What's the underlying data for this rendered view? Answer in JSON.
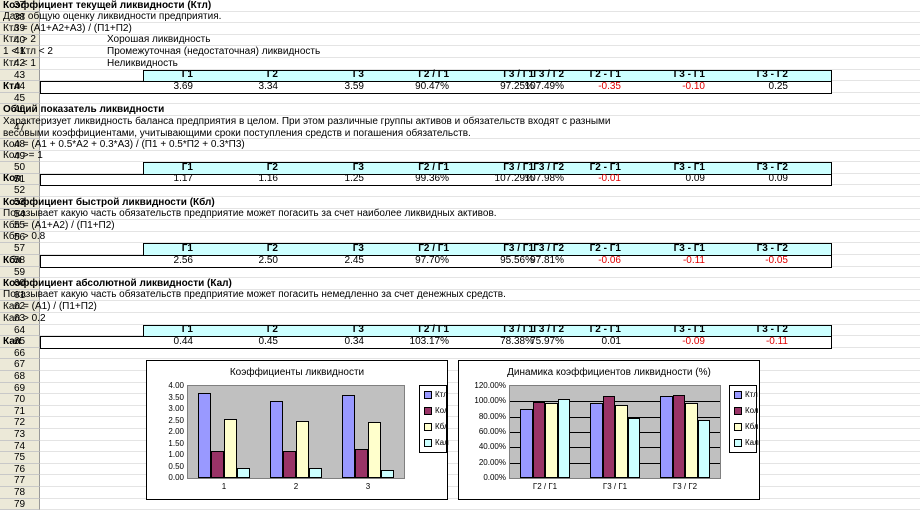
{
  "rows": [
    "37",
    "38",
    "39",
    "40",
    "41",
    "42",
    "43",
    "44",
    "45",
    "46",
    "47",
    "48",
    "49",
    "50",
    "51",
    "52",
    "53",
    "54",
    "55",
    "56",
    "57",
    "58",
    "59",
    "60",
    "61",
    "62",
    "63",
    "64",
    "65",
    "66",
    "67",
    "68",
    "69",
    "70",
    "71",
    "72",
    "73",
    "74",
    "75",
    "76",
    "77",
    "78",
    "79"
  ],
  "colors": {
    "ktl": "#9999ff",
    "kol": "#993366",
    "kbl": "#ffffcc",
    "kal": "#ccffff",
    "header_band": "#ccffff",
    "negative": "#e00000",
    "plot_bg": "#c0c0c0"
  },
  "column_headers": [
    "Г1",
    "Г2",
    "Г3",
    "Г2 / Г1",
    "Г3 / Г1",
    "Г3 / Г2",
    "Г2 - Г1",
    "Г3 - Г1",
    "Г3 - Г2"
  ],
  "sections": [
    {
      "title": "Коэффициент текущей ликвидности (Ктл)",
      "description": "Дает общую оценку ликвидности предприятия.",
      "formula": "Ктл = (А1+А2+А3) / (П1+П2)",
      "criteria": [
        {
          "cond": "Ктл > 2",
          "meaning": "Хорошая ликвидность"
        },
        {
          "cond": "1 < Ктл < 2",
          "meaning": "Промежуточная (недостаточная) ликвидность"
        },
        {
          "cond": "Ктл < 1",
          "meaning": "Неликвидность"
        }
      ],
      "label": "Ктл",
      "values": [
        "3.69",
        "3.34",
        "3.59",
        "90.47%",
        "97.25%",
        "107.49%",
        "-0.35",
        "-0.10",
        "0.25"
      ],
      "negative": [
        false,
        false,
        false,
        false,
        false,
        false,
        true,
        true,
        false
      ]
    },
    {
      "title": "Общий показатель ликвидности",
      "description1": "Характеризует ликвидность баланса предприятия в целом. При этом различные группы активов и обязательств входят с разными",
      "description2": "весовыми коэффициентами, учитывающими сроки поступления средств и погашения обязательств.",
      "formula": "Кол = (А1 + 0.5*А2 + 0.3*А3) / (П1 + 0.5*П2 + 0.3*П3)",
      "criteria_text": "Кол >= 1",
      "label": "Кол",
      "values": [
        "1.17",
        "1.16",
        "1.25",
        "99.36%",
        "107.29%",
        "107.98%",
        "-0.01",
        "0.09",
        "0.09"
      ],
      "negative": [
        false,
        false,
        false,
        false,
        false,
        false,
        true,
        false,
        false
      ]
    },
    {
      "title": "Коэффициент быстрой ликвидности (Кбл)",
      "description": "Показывает какую часть обязательств предприятие может погасить за счет наиболее ликвидных активов.",
      "formula": "Кбл = (А1+А2) / (П1+П2)",
      "criteria_text": "Кбл > 0.8",
      "label": "Кбл",
      "values": [
        "2.56",
        "2.50",
        "2.45",
        "97.70%",
        "95.56%",
        "97.81%",
        "-0.06",
        "-0.11",
        "-0.05"
      ],
      "negative": [
        false,
        false,
        false,
        false,
        false,
        false,
        true,
        true,
        true
      ]
    },
    {
      "title": "Коэффициент абсолютной ликвидности (Кал)",
      "description": "Показывает какую часть обязательств предприятие может погасить немедленно за счет денежных средств.",
      "formula": "Кал = (А1) / (П1+П2)",
      "criteria_text": "Кал > 0.2",
      "label": "Кал",
      "values": [
        "0.44",
        "0.45",
        "0.34",
        "103.17%",
        "78.38%",
        "75.97%",
        "0.01",
        "-0.09",
        "-0.11"
      ],
      "negative": [
        false,
        false,
        false,
        false,
        false,
        false,
        false,
        true,
        true
      ]
    }
  ],
  "chart_data": [
    {
      "type": "bar",
      "title": "Коэффициенты ликвидности",
      "categories": [
        "1",
        "2",
        "3"
      ],
      "series": [
        {
          "name": "Ктл",
          "values": [
            3.69,
            3.34,
            3.59
          ]
        },
        {
          "name": "Кол",
          "values": [
            1.17,
            1.16,
            1.25
          ]
        },
        {
          "name": "Кбл",
          "values": [
            2.56,
            2.5,
            2.45
          ]
        },
        {
          "name": "Кал",
          "values": [
            0.44,
            0.45,
            0.34
          ]
        }
      ],
      "ylim": [
        0,
        4
      ],
      "yticks": [
        "0.00",
        "0.50",
        "1.00",
        "1.50",
        "2.00",
        "2.50",
        "3.00",
        "3.50",
        "4.00"
      ],
      "legend": "right",
      "grid": false
    },
    {
      "type": "bar",
      "title": "Динамика коэффициентов ликвидности (%)",
      "categories": [
        "Г2 / Г1",
        "Г3 / Г1",
        "Г3 / Г2"
      ],
      "series": [
        {
          "name": "Ктл",
          "values": [
            90.47,
            97.25,
            107.49
          ]
        },
        {
          "name": "Кол",
          "values": [
            99.36,
            107.29,
            107.98
          ]
        },
        {
          "name": "Кбл",
          "values": [
            97.7,
            95.56,
            97.81
          ]
        },
        {
          "name": "Кал",
          "values": [
            103.17,
            78.38,
            75.97
          ]
        }
      ],
      "ylim": [
        0,
        120
      ],
      "yticks": [
        "0.00%",
        "20.00%",
        "40.00%",
        "60.00%",
        "80.00%",
        "100.00%",
        "120.00%"
      ],
      "legend": "right",
      "grid": true
    }
  ]
}
